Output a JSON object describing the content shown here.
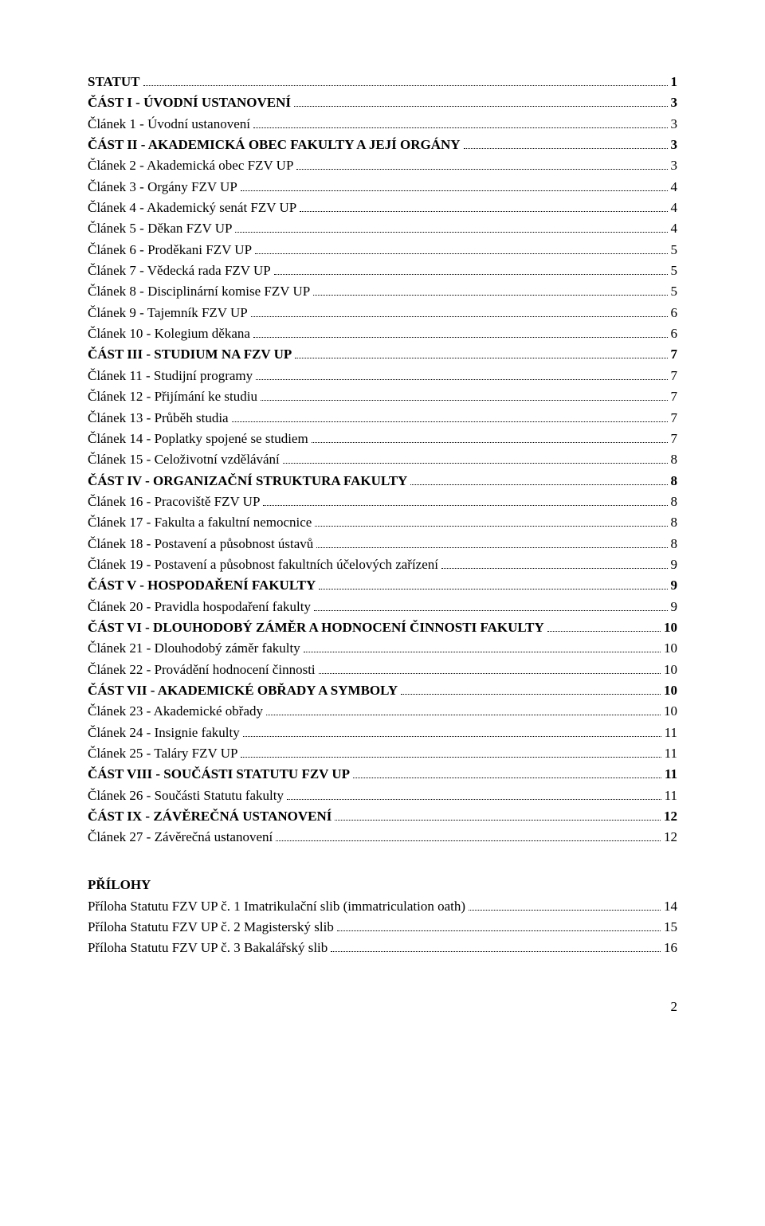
{
  "toc": [
    {
      "label": "STATUT",
      "page": "1",
      "bold": true
    },
    {
      "label": "ČÁST I - ÚVODNÍ USTANOVENÍ",
      "page": "3",
      "bold": true
    },
    {
      "label": "Článek 1 - Úvodní ustanovení",
      "page": "3",
      "bold": false
    },
    {
      "label": "ČÁST II - AKADEMICKÁ OBEC FAKULTY A JEJÍ ORGÁNY",
      "page": "3",
      "bold": true
    },
    {
      "label": "Článek 2 - Akademická obec FZV UP",
      "page": "3",
      "bold": false
    },
    {
      "label": "Článek 3 - Orgány FZV UP",
      "page": "4",
      "bold": false
    },
    {
      "label": "Článek 4 - Akademický senát FZV UP",
      "page": "4",
      "bold": false
    },
    {
      "label": "Článek 5 - Děkan FZV UP",
      "page": "4",
      "bold": false
    },
    {
      "label": "Článek 6 - Proděkani FZV UP",
      "page": "5",
      "bold": false
    },
    {
      "label": "Článek 7 - Vědecká rada FZV UP",
      "page": "5",
      "bold": false
    },
    {
      "label": "Článek 8 - Disciplinární komise FZV UP",
      "page": "5",
      "bold": false
    },
    {
      "label": "Článek 9 - Tajemník FZV UP",
      "page": "6",
      "bold": false
    },
    {
      "label": "Článek 10 - Kolegium děkana",
      "page": "6",
      "bold": false
    },
    {
      "label": "ČÁST III - STUDIUM NA FZV UP",
      "page": "7",
      "bold": true
    },
    {
      "label": "Článek 11 - Studijní programy",
      "page": "7",
      "bold": false
    },
    {
      "label": "Článek 12 - Přijímání ke studiu",
      "page": "7",
      "bold": false
    },
    {
      "label": "Článek 13 - Průběh studia",
      "page": "7",
      "bold": false
    },
    {
      "label": "Článek 14 - Poplatky spojené se studiem",
      "page": "7",
      "bold": false
    },
    {
      "label": "Článek 15 - Celoživotní vzdělávání",
      "page": "8",
      "bold": false
    },
    {
      "label": "ČÁST IV - ORGANIZAČNÍ STRUKTURA FAKULTY",
      "page": "8",
      "bold": true
    },
    {
      "label": "Článek 16 - Pracoviště FZV UP",
      "page": "8",
      "bold": false
    },
    {
      "label": "Článek 17 - Fakulta a fakultní nemocnice",
      "page": "8",
      "bold": false
    },
    {
      "label": "Článek 18 - Postavení a působnost ústavů",
      "page": "8",
      "bold": false
    },
    {
      "label": "Článek 19 - Postavení a působnost fakultních účelových zařízení",
      "page": "9",
      "bold": false
    },
    {
      "label": "ČÁST V - HOSPODAŘENÍ FAKULTY",
      "page": "9",
      "bold": true
    },
    {
      "label": "Článek 20 - Pravidla hospodaření fakulty",
      "page": "9",
      "bold": false
    },
    {
      "label": "ČÁST VI - DLOUHODOBÝ ZÁMĚR A HODNOCENÍ ČINNOSTI FAKULTY",
      "page": "10",
      "bold": true
    },
    {
      "label": "Článek 21 - Dlouhodobý záměr fakulty",
      "page": "10",
      "bold": false
    },
    {
      "label": "Článek 22 - Provádění hodnocení činnosti",
      "page": "10",
      "bold": false
    },
    {
      "label": "ČÁST VII - AKADEMICKÉ OBŘADY A SYMBOLY",
      "page": "10",
      "bold": true
    },
    {
      "label": "Článek 23 - Akademické obřady",
      "page": "10",
      "bold": false
    },
    {
      "label": "Článek 24 - Insignie fakulty",
      "page": "11",
      "bold": false
    },
    {
      "label": "Článek 25 - Taláry FZV UP",
      "page": "11",
      "bold": false
    },
    {
      "label": "ČÁST VIII - SOUČÁSTI STATUTU FZV UP",
      "page": "11",
      "bold": true
    },
    {
      "label": "Článek 26 - Součásti Statutu fakulty",
      "page": "11",
      "bold": false
    },
    {
      "label": "ČÁST IX - ZÁVĚREČNÁ USTANOVENÍ",
      "page": "12",
      "bold": true
    },
    {
      "label": "Článek 27 - Závěrečná ustanovení",
      "page": "12",
      "bold": false
    }
  ],
  "prilohy_header": "PŘÍLOHY",
  "prilohy": [
    {
      "label": "Příloha Statutu FZV UP č. 1 Imatrikulační slib (immatriculation oath)",
      "page": "14"
    },
    {
      "label": "Příloha Statutu FZV UP č. 2 Magisterský slib",
      "page": "15"
    },
    {
      "label": "Příloha Statutu FZV UP č. 3 Bakalářský slib",
      "page": "16"
    }
  ],
  "page_number": "2"
}
